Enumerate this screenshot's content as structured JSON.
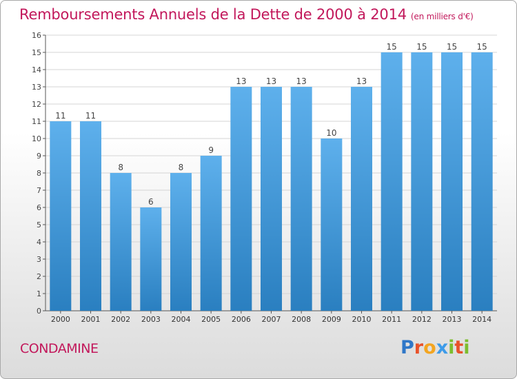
{
  "header": {
    "title": "Remboursements Annuels de la Dette de 2000 à 2014",
    "unit": "(en milliers d'€)"
  },
  "footer": {
    "commune": "CONDAMINE",
    "logo": {
      "text": "Proxiti",
      "letter_colors": [
        "#2f77c8",
        "#e8522a",
        "#f3a521",
        "#3d9be9",
        "#7cbd2e",
        "#e8522a",
        "#7cbd2e"
      ]
    }
  },
  "chart_data": {
    "type": "bar",
    "title": "Remboursements Annuels de la Dette de 2000 à 2014",
    "subtitle": "(en milliers d'€)",
    "categories": [
      "2000",
      "2001",
      "2002",
      "2003",
      "2004",
      "2005",
      "2006",
      "2007",
      "2008",
      "2009",
      "2010",
      "2011",
      "2012",
      "2013",
      "2014"
    ],
    "values": [
      11,
      11,
      8,
      6,
      8,
      9,
      13,
      13,
      13,
      10,
      13,
      15,
      15,
      15,
      15
    ],
    "value_labels": [
      "11",
      "11",
      "8",
      "6",
      "8",
      "9",
      "13",
      "13",
      "13",
      "10",
      "13",
      "15",
      "15",
      "15",
      "15"
    ],
    "y_ticks": [
      "0",
      "1",
      "2",
      "3",
      "4",
      "5",
      "6",
      "7",
      "8",
      "9",
      "10",
      "11",
      "12",
      "13",
      "14",
      "15",
      "16"
    ],
    "ylim": [
      0,
      16
    ],
    "grid": true,
    "bar_color": "#4a9de0",
    "legend": "none"
  }
}
